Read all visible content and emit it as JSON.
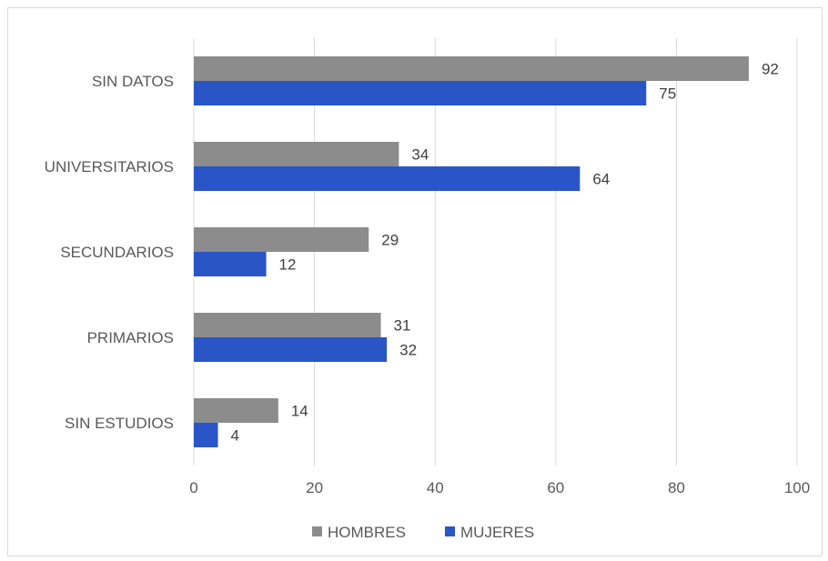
{
  "chart_data": {
    "type": "bar",
    "orientation": "horizontal",
    "categories": [
      "SIN DATOS",
      "UNIVERSITARIOS",
      "SECUNDARIOS",
      "PRIMARIOS",
      "SIN ESTUDIOS"
    ],
    "series": [
      {
        "name": "HOMBRES",
        "color": "#8c8c8c",
        "values": [
          92,
          34,
          29,
          31,
          14
        ]
      },
      {
        "name": "MUJERES",
        "color": "#2a55c6",
        "values": [
          75,
          64,
          12,
          32,
          4
        ]
      }
    ],
    "xlim": [
      0,
      100
    ],
    "xticks": [
      0,
      20,
      40,
      60,
      80,
      100
    ],
    "grid": true,
    "legend_position": "bottom",
    "data_labels": true
  }
}
